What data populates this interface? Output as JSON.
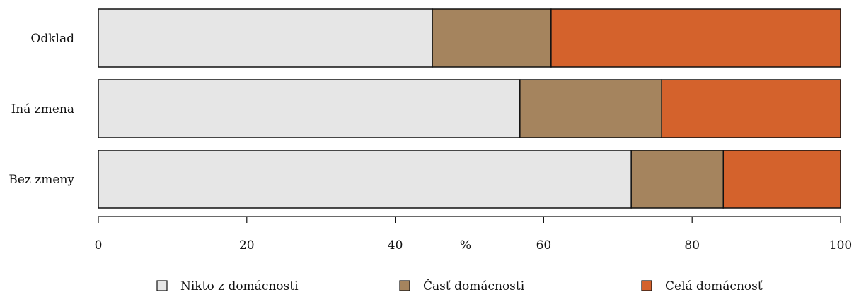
{
  "chart_data": {
    "type": "bar",
    "orientation": "horizontal",
    "stacked": true,
    "categories": [
      "Odklad",
      "Iná zmena",
      "Bez zmeny"
    ],
    "series": [
      {
        "name": "Nikto z domácnosti",
        "color": "#e6e6e6",
        "values": [
          45.0,
          56.8,
          71.8
        ]
      },
      {
        "name": "Časť domácnosti",
        "color": "#a5845e",
        "values": [
          16.0,
          19.1,
          12.4
        ]
      },
      {
        "name": "Celá domácnosť",
        "color": "#d4622c",
        "values": [
          39.0,
          24.1,
          15.8
        ]
      }
    ],
    "xlabel": "%",
    "xlim": [
      0,
      100
    ],
    "xticks": [
      "0",
      "20",
      "40",
      "60",
      "80",
      "100"
    ],
    "grid": false,
    "legend_position": "bottom"
  }
}
